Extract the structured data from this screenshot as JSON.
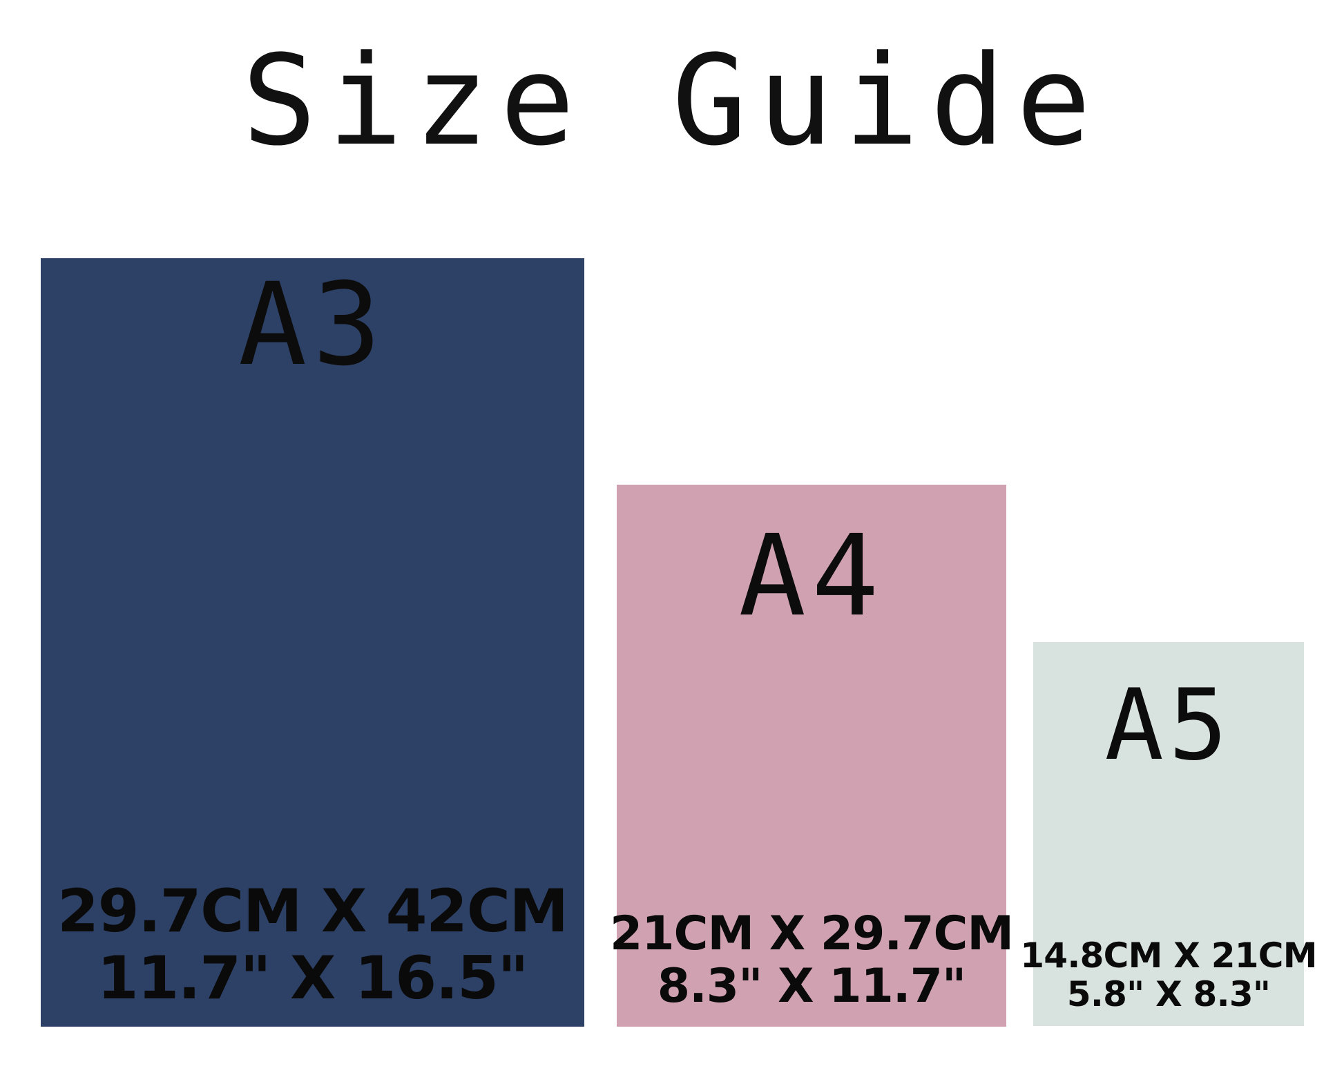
{
  "title": "Size Guide",
  "colors": {
    "background": "#ffffff",
    "text": "#111111",
    "a3_fill": "#2d4065",
    "a4_fill": "#d0a1b0",
    "a5_fill": "#d8e2de"
  },
  "panels": [
    {
      "id": "a3",
      "label": "A3",
      "metric": "29.7CM X 42CM",
      "imperial": "11.7\" X 16.5\"",
      "color": "#2d4065"
    },
    {
      "id": "a4",
      "label": "A4",
      "metric": "21CM X 29.7CM",
      "imperial": "8.3\" X 11.7\"",
      "color": "#d0a1b0"
    },
    {
      "id": "a5",
      "label": "A5",
      "metric": "14.8CM X 21CM",
      "imperial": "5.8\" X 8.3\"",
      "color": "#d8e2de"
    }
  ]
}
